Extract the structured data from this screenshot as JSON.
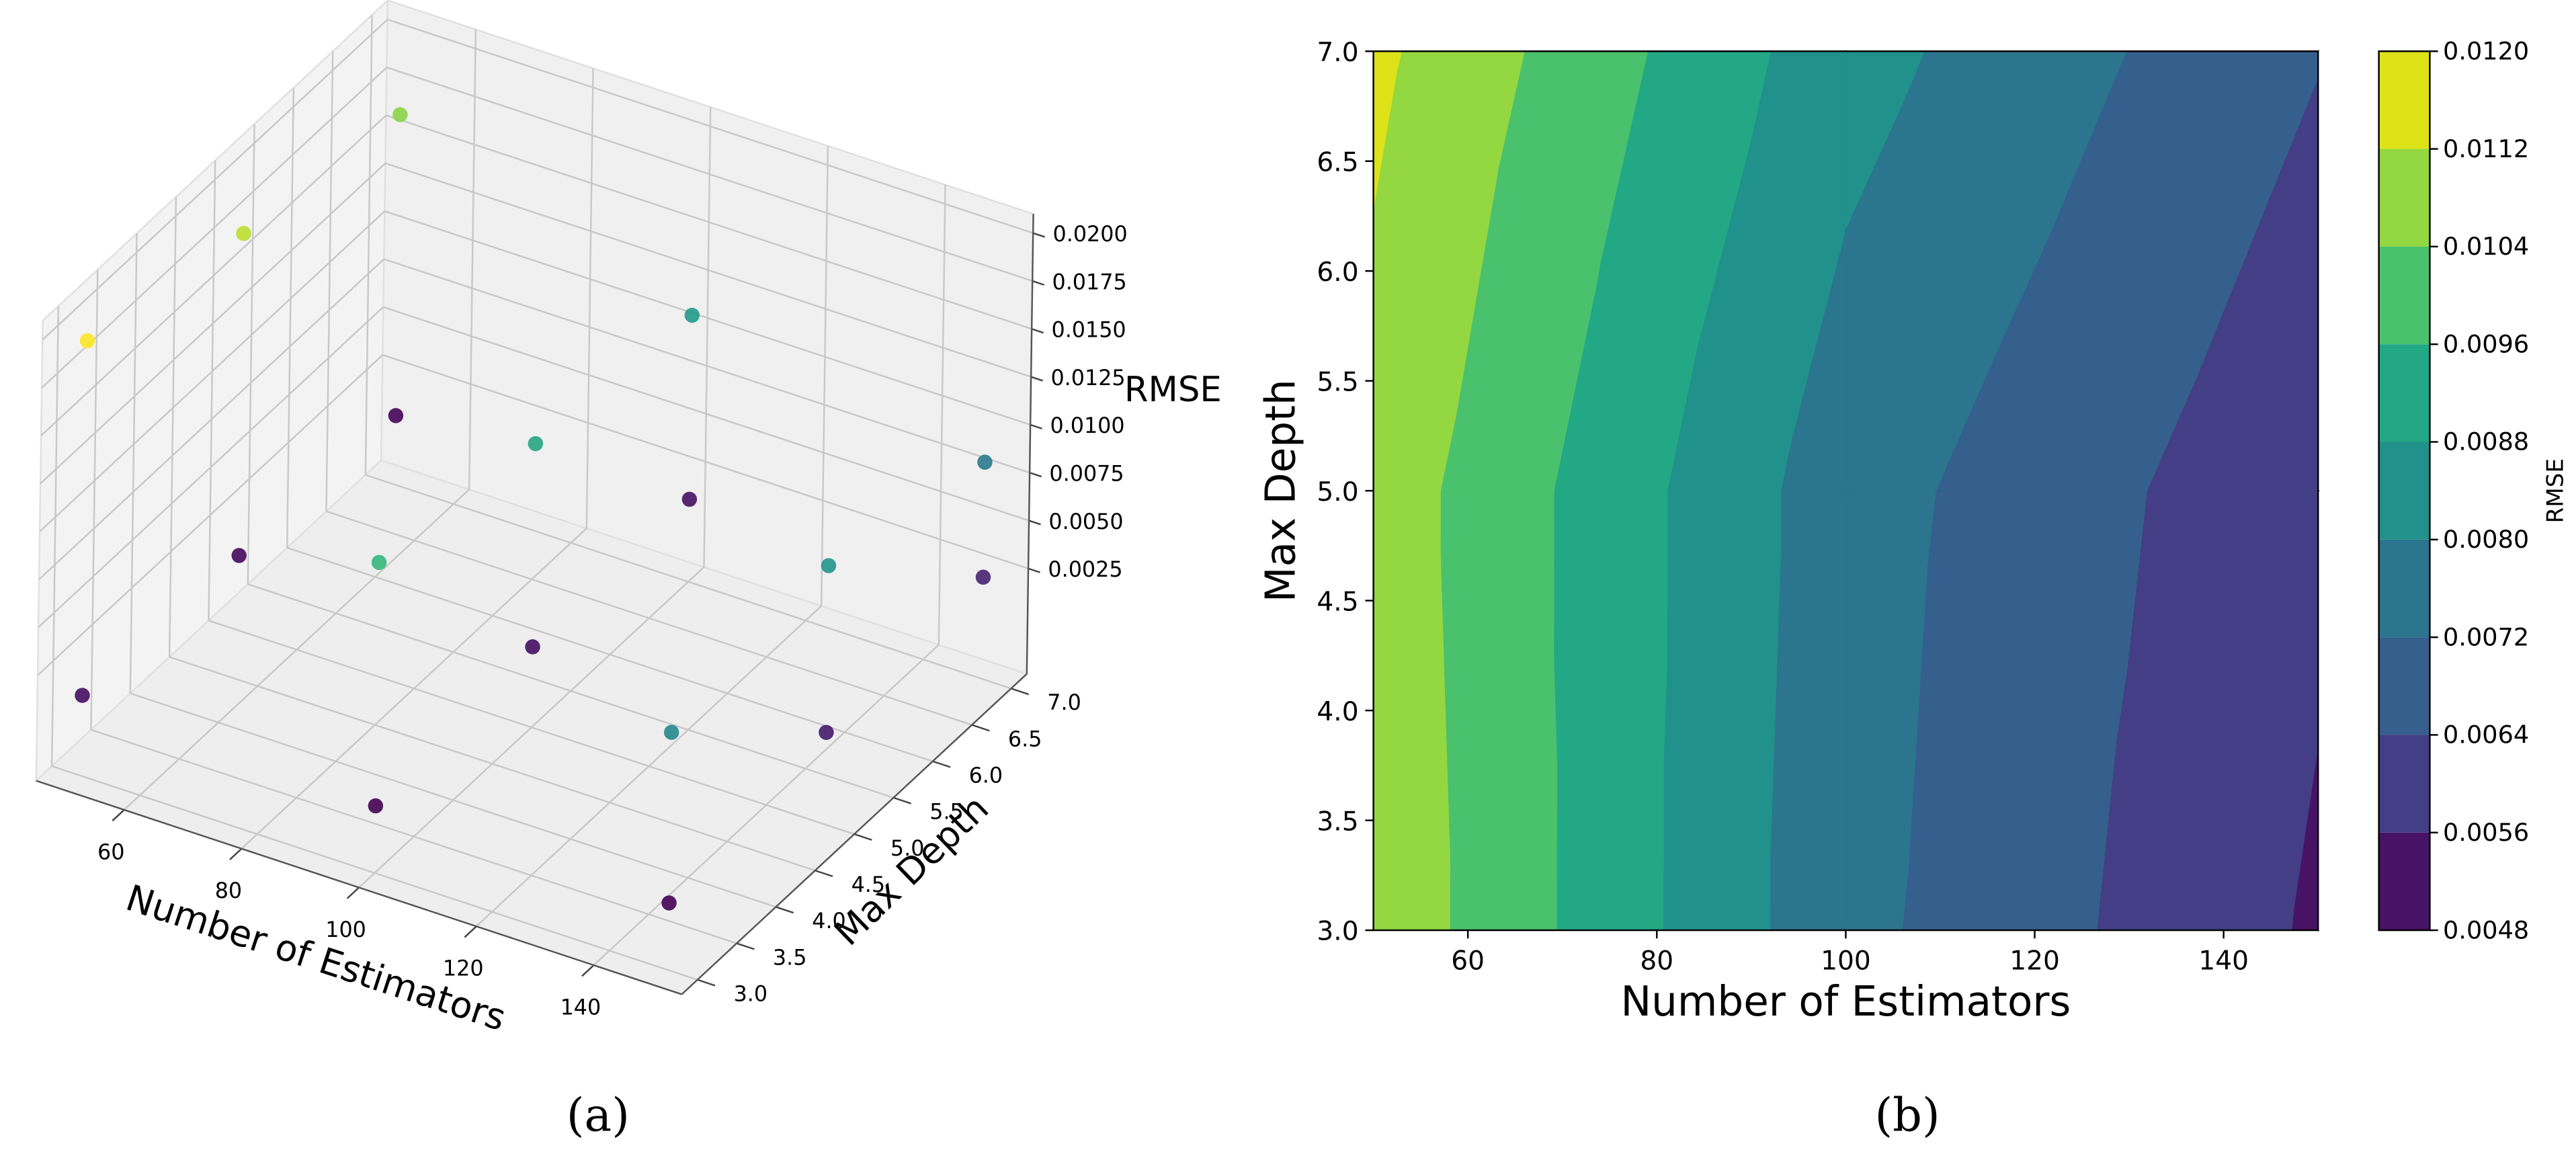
{
  "chart_data": [
    {
      "type": "scatter3d",
      "caption": "(a)",
      "xlabel": "Number of Estimators",
      "ylabel": "Max Depth",
      "zlabel": "RMSE",
      "x": [
        50,
        50,
        50,
        50,
        50,
        50,
        100,
        100,
        100,
        100,
        100,
        100,
        150,
        150,
        150,
        150,
        150,
        150
      ],
      "y": [
        3,
        5,
        7,
        3,
        5,
        7,
        3,
        5,
        7,
        3,
        5,
        7,
        3,
        5,
        7,
        3,
        5,
        7
      ],
      "z": [
        0.0197,
        0.0177,
        0.0163,
        0.0012,
        0.0009,
        0.0006,
        0.0132,
        0.0118,
        0.0109,
        0.0005,
        0.0012,
        0.0013,
        0.0094,
        0.0105,
        0.0083,
        0.0005,
        0.0018,
        0.0023
      ],
      "xlim": [
        45,
        155
      ],
      "ylim": [
        2.8,
        7.2
      ],
      "zlim": [
        -0.003,
        0.021
      ],
      "xticks": [
        60,
        80,
        100,
        120,
        140
      ],
      "yticks": [
        {
          "value": 3,
          "label": "3.0"
        },
        3.5,
        {
          "value": 4,
          "label": "4.0"
        },
        4.5,
        {
          "value": 5,
          "label": "5.0"
        },
        5.5,
        {
          "value": 6,
          "label": "6.0"
        },
        6.5,
        {
          "value": 7,
          "label": "7.0"
        }
      ],
      "zticks": [
        0.0025,
        {
          "value": 0.005,
          "label": "0.0050"
        },
        0.0075,
        {
          "value": 0.01,
          "label": "0.0100"
        },
        0.0125,
        {
          "value": 0.015,
          "label": "0.0150"
        },
        0.0175,
        {
          "value": 0.02,
          "label": "0.0200"
        }
      ],
      "colormap": [
        "#440154",
        "#482878",
        "#3e4989",
        "#31688e",
        "#26828e",
        "#1f9e89",
        "#35b779",
        "#6ece58",
        "#b5de2b",
        "#fde725"
      ],
      "grid": true
    },
    {
      "type": "contourf",
      "caption": "(b)",
      "xlabel": "Number of Estimators",
      "ylabel": "Max Depth",
      "colorbar_label": "RMSE",
      "x": [
        50,
        100,
        150
      ],
      "y": [
        3,
        5,
        7
      ],
      "z": [
        [
          0.01097,
          0.00743,
          0.00549
        ],
        [
          0.01087,
          0.00754,
          0.00575
        ],
        [
          0.01138,
          0.00831,
          0.00644
        ]
      ],
      "levels": [
        0.0048,
        0.0056,
        0.0064,
        0.0072,
        {
          "value": 0.008,
          "label": "0.0080"
        },
        0.0088,
        0.0096,
        {
          "value": 0.0104,
          "label": "0.0104"
        },
        {
          "value": 0.0112,
          "label": "0.0112"
        },
        {
          "value": 0.012,
          "label": "0.0120"
        }
      ],
      "colors": [
        "#471365",
        "#433e85",
        "#355f8d",
        "#2b758e",
        "#21918c",
        "#22a884",
        "#4ac16d",
        "#93d741",
        "#dde318"
      ],
      "xlim": [
        50,
        150
      ],
      "ylim": [
        3,
        7
      ],
      "xticks": [
        60,
        80,
        100,
        120,
        140
      ],
      "yticks": [
        {
          "value": 3,
          "label": "3.0"
        },
        3.5,
        {
          "value": 4,
          "label": "4.0"
        },
        4.5,
        {
          "value": 5,
          "label": "5.0"
        },
        5.5,
        {
          "value": 6,
          "label": "6.0"
        },
        6.5,
        {
          "value": 7,
          "label": "7.0"
        }
      ]
    }
  ]
}
